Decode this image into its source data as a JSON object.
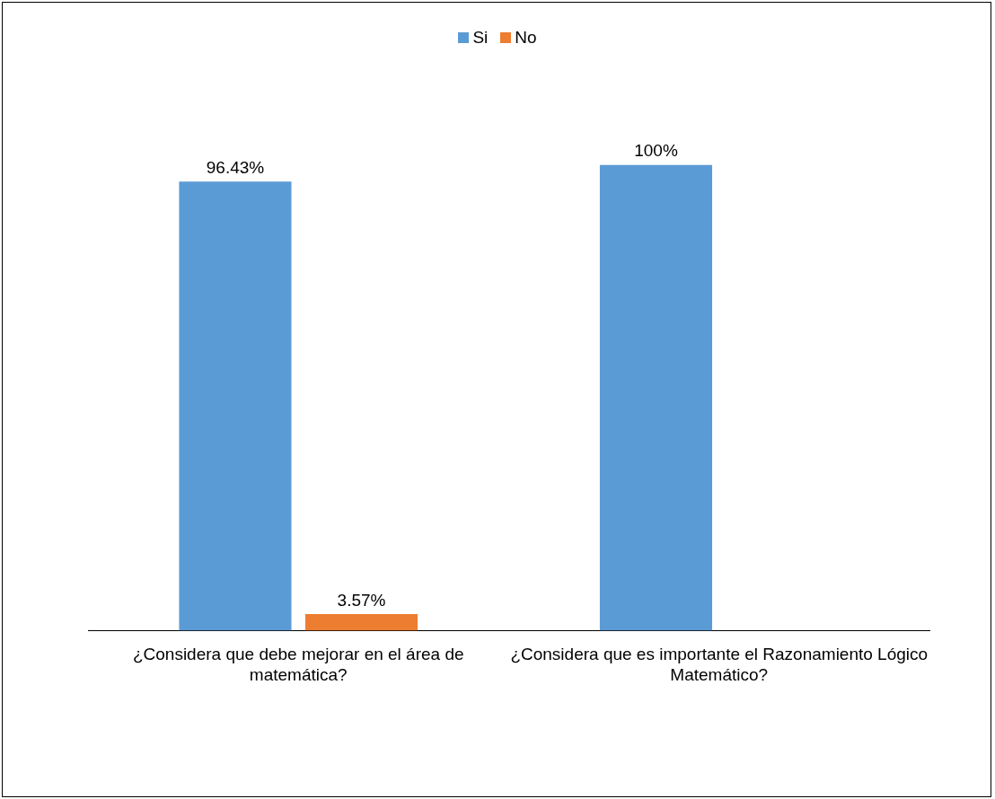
{
  "chart_data": {
    "type": "bar",
    "categories": [
      "¿Considera que debe mejorar en el área de matemática?",
      "¿Considera que es importante el Razonamiento Lógico Matemático?"
    ],
    "series": [
      {
        "name": "Si",
        "color": "#5b9bd5",
        "values": [
          96.43,
          100
        ],
        "value_labels": [
          "96.43%",
          "100%"
        ]
      },
      {
        "name": "No",
        "color": "#ed7d31",
        "values": [
          3.57,
          null
        ],
        "value_labels": [
          "3.57%",
          null
        ]
      }
    ],
    "legend": "top",
    "grid": false
  }
}
